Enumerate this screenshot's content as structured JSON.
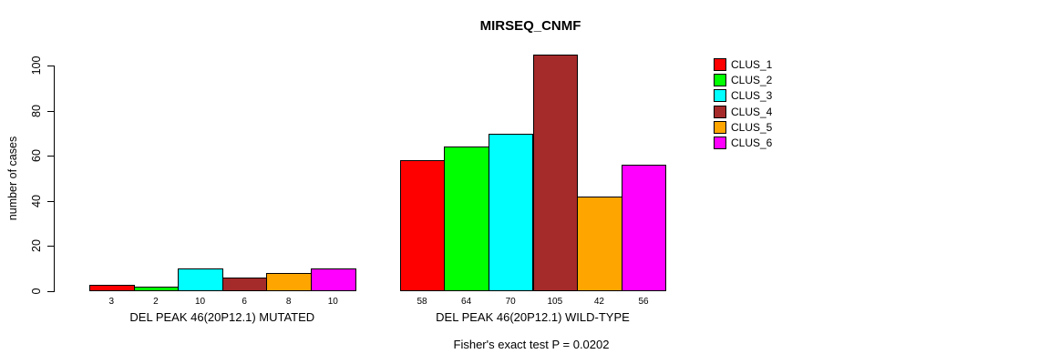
{
  "chart_data": {
    "type": "bar",
    "title": "MIRSEQ_CNMF",
    "ylabel": "number of cases",
    "ylim": [
      0,
      105
    ],
    "yticks": [
      0,
      20,
      40,
      60,
      80,
      100
    ],
    "grid": false,
    "legend_position": "right-outside-top",
    "categories": [
      "DEL PEAK 46(20P12.1) MUTATED",
      "DEL PEAK 46(20P12.1) WILD-TYPE"
    ],
    "series": [
      {
        "name": "CLUS_1",
        "color": "#FF0000",
        "values": [
          3,
          58
        ]
      },
      {
        "name": "CLUS_2",
        "color": "#00FF00",
        "values": [
          2,
          64
        ]
      },
      {
        "name": "CLUS_3",
        "color": "#00FFFF",
        "values": [
          10,
          70
        ]
      },
      {
        "name": "CLUS_4",
        "color": "#A52A2A",
        "values": [
          6,
          105
        ]
      },
      {
        "name": "CLUS_5",
        "color": "#FFA500",
        "values": [
          8,
          42
        ]
      },
      {
        "name": "CLUS_6",
        "color": "#FF00FF",
        "values": [
          10,
          56
        ]
      }
    ],
    "bar_value_labels_shown": true,
    "annotation": "Fisher's exact test P = 0.0202",
    "axis_color": "#000000",
    "background_color": "#FFFFFF"
  }
}
